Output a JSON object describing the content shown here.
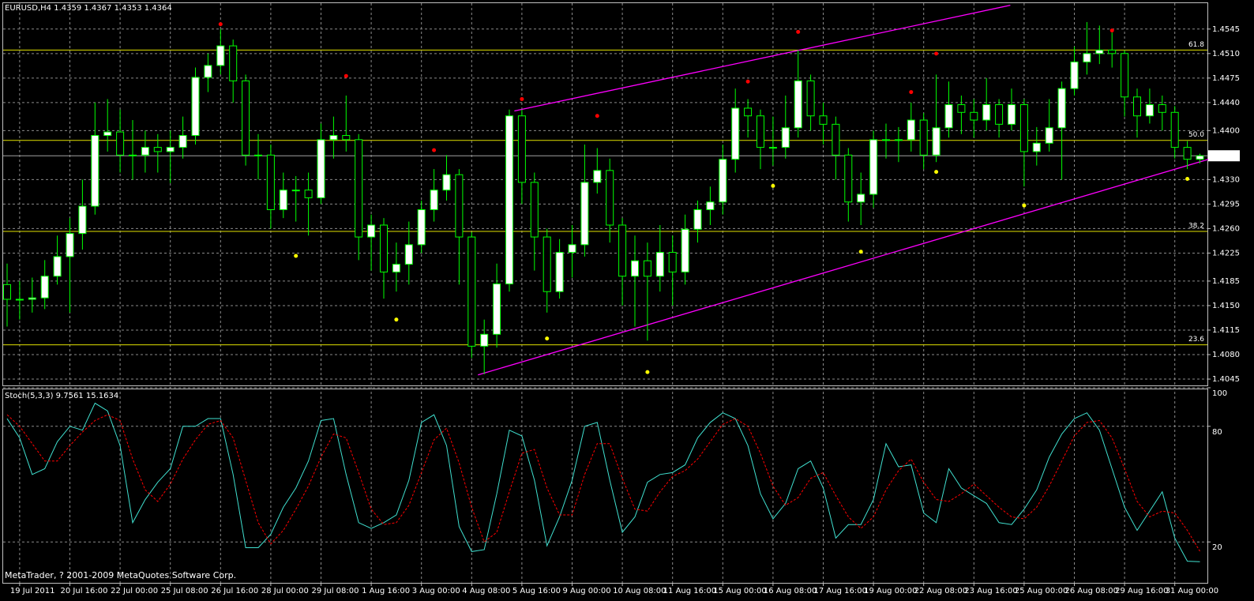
{
  "chart_data": [
    {
      "type": "candlestick",
      "title": "EURUSD,H4",
      "categories": [
        null,
        "19 Jul 2011",
        null,
        null,
        null,
        "20 Jul 16:00",
        null,
        null,
        null,
        "22 Jul 00:00",
        null,
        null,
        null,
        "25 Jul 08:00",
        null,
        null,
        null,
        "26 Jul 16:00",
        null,
        null,
        null,
        "28 Jul 00:00",
        null,
        null,
        null,
        "29 Jul 08:00",
        null,
        null,
        null,
        "1 Aug 16:00",
        null,
        null,
        null,
        "3 Aug 00:00",
        null,
        null,
        null,
        "4 Aug 08:00",
        null,
        null,
        null,
        "5 Aug 16:00",
        null,
        null,
        null,
        "9 Aug 00:00",
        null,
        null,
        null,
        "10 Aug 08:00",
        null,
        null,
        null,
        "11 Aug 16:00",
        null,
        null,
        null,
        "15 Aug 00:00",
        null,
        null,
        null,
        "16 Aug 08:00",
        null,
        null,
        null,
        "17 Aug 16:00",
        null,
        null,
        null,
        "19 Aug 00:00",
        null,
        null,
        null,
        "22 Aug 08:00",
        null,
        null,
        null,
        "23 Aug 16:00",
        null,
        null,
        null,
        "25 Aug 00:00",
        null,
        null,
        null,
        "26 Aug 08:00",
        null,
        null,
        null,
        "29 Aug 16:00",
        null,
        null,
        null,
        "31 Aug 00:00",
        null,
        null
      ],
      "open": [
        1.418,
        1.4159,
        1.4159,
        1.4161,
        1.4192,
        1.422,
        1.4253,
        1.4292,
        1.4393,
        1.4398,
        1.4365,
        1.4365,
        1.4376,
        1.437,
        1.4376,
        1.4393,
        1.4476,
        1.4493,
        1.4521,
        1.4471,
        1.4365,
        1.4365,
        1.4287,
        1.4315,
        1.4315,
        1.4304,
        1.4387,
        1.4393,
        1.4387,
        1.4248,
        1.4265,
        1.4198,
        1.4209,
        1.4237,
        1.4287,
        1.4315,
        1.4337,
        1.4248,
        1.4092,
        1.4109,
        1.4181,
        1.4421,
        1.4326,
        1.4248,
        1.417,
        1.4226,
        1.4237,
        1.4326,
        1.4343,
        1.4265,
        1.4192,
        1.4214,
        1.4192,
        1.4226,
        1.4198,
        1.4259,
        1.4287,
        1.4298,
        1.4359,
        1.4432,
        1.4421,
        1.4376,
        1.4376,
        1.4404,
        1.4471,
        1.4421,
        1.4409,
        1.4365,
        1.4298,
        1.4309,
        1.4387,
        1.4387,
        1.4387,
        1.4415,
        1.4365,
        1.4404,
        1.4437,
        1.4426,
        1.4415,
        1.4437,
        1.4409,
        1.4437,
        1.437,
        1.4382,
        1.4404,
        1.446,
        1.4498,
        1.451,
        1.4515,
        1.451,
        1.4448,
        1.4421,
        1.4437,
        1.4426,
        1.4376,
        1.4359
      ],
      "high": [
        1.421,
        1.4185,
        1.419,
        1.4215,
        1.425,
        1.4275,
        1.433,
        1.444,
        1.4445,
        1.443,
        1.4415,
        1.44,
        1.4395,
        1.44,
        1.442,
        1.449,
        1.451,
        1.4545,
        1.453,
        1.448,
        1.4395,
        1.438,
        1.434,
        1.4335,
        1.434,
        1.441,
        1.442,
        1.445,
        1.4395,
        1.428,
        1.4275,
        1.424,
        1.427,
        1.43,
        1.4345,
        1.4365,
        1.4345,
        1.4255,
        1.413,
        1.421,
        1.443,
        1.443,
        1.434,
        1.426,
        1.4245,
        1.4265,
        1.438,
        1.4375,
        1.436,
        1.4275,
        1.425,
        1.424,
        1.4265,
        1.425,
        1.428,
        1.43,
        1.432,
        1.438,
        1.446,
        1.4445,
        1.443,
        1.442,
        1.445,
        1.4515,
        1.448,
        1.444,
        1.442,
        1.4375,
        1.434,
        1.44,
        1.441,
        1.4405,
        1.444,
        1.4425,
        1.448,
        1.447,
        1.445,
        1.4445,
        1.4475,
        1.4445,
        1.446,
        1.4445,
        1.4405,
        1.4445,
        1.447,
        1.452,
        1.4555,
        1.455,
        1.454,
        1.4515,
        1.446,
        1.446,
        1.445,
        1.4435,
        1.4385,
        1.4367
      ],
      "low": [
        1.412,
        1.413,
        1.414,
        1.4145,
        1.418,
        1.414,
        1.423,
        1.428,
        1.437,
        1.434,
        1.433,
        1.434,
        1.434,
        1.4325,
        1.436,
        1.438,
        1.4455,
        1.448,
        1.444,
        1.435,
        1.433,
        1.426,
        1.4275,
        1.427,
        1.425,
        1.4295,
        1.436,
        1.437,
        1.4215,
        1.42,
        1.416,
        1.417,
        1.418,
        1.4225,
        1.427,
        1.43,
        1.418,
        1.4075,
        1.4052,
        1.409,
        1.417,
        1.4295,
        1.42,
        1.414,
        1.416,
        1.419,
        1.422,
        1.431,
        1.424,
        1.415,
        1.412,
        1.41,
        1.417,
        1.415,
        1.418,
        1.424,
        1.4265,
        1.428,
        1.434,
        1.439,
        1.4345,
        1.435,
        1.436,
        1.439,
        1.44,
        1.438,
        1.433,
        1.427,
        1.4265,
        1.429,
        1.436,
        1.4355,
        1.437,
        1.4345,
        1.4355,
        1.439,
        1.4395,
        1.439,
        1.44,
        1.439,
        1.44,
        1.432,
        1.435,
        1.437,
        1.433,
        1.445,
        1.448,
        1.4495,
        1.449,
        1.442,
        1.439,
        1.441,
        1.44,
        1.436,
        1.4345,
        1.4353
      ],
      "close": [
        1.4159,
        1.4159,
        1.4161,
        1.4192,
        1.422,
        1.4253,
        1.4292,
        1.4393,
        1.4398,
        1.4365,
        1.4365,
        1.4376,
        1.437,
        1.4376,
        1.4393,
        1.4476,
        1.4493,
        1.4521,
        1.4471,
        1.4365,
        1.4365,
        1.4287,
        1.4315,
        1.4315,
        1.4304,
        1.4387,
        1.4393,
        1.4387,
        1.4248,
        1.4265,
        1.4198,
        1.4209,
        1.4237,
        1.4287,
        1.4315,
        1.4337,
        1.4248,
        1.4092,
        1.4109,
        1.4181,
        1.4421,
        1.4326,
        1.4248,
        1.417,
        1.4226,
        1.4237,
        1.4326,
        1.4343,
        1.4265,
        1.4192,
        1.4214,
        1.4192,
        1.4226,
        1.4198,
        1.4259,
        1.4287,
        1.4298,
        1.4359,
        1.4432,
        1.4421,
        1.4376,
        1.4376,
        1.4404,
        1.4471,
        1.4421,
        1.4409,
        1.4365,
        1.4298,
        1.4309,
        1.4387,
        1.4387,
        1.4387,
        1.4415,
        1.4365,
        1.4404,
        1.4437,
        1.4426,
        1.4415,
        1.4437,
        1.4409,
        1.4437,
        1.437,
        1.4382,
        1.4404,
        1.446,
        1.4498,
        1.451,
        1.4515,
        1.451,
        1.4448,
        1.4421,
        1.4437,
        1.4426,
        1.4376,
        1.4359,
        1.4364
      ],
      "bull_color": "#ffffff",
      "bear_color": "#000000",
      "wick_color": "#00ff00",
      "ylim": [
        1.4036,
        1.4582
      ],
      "yticks": [
        1.4545,
        {
          "value": 1.451,
          "label": "1.4510"
        },
        1.4475,
        {
          "value": 1.444,
          "label": "1.4440"
        },
        {
          "value": 1.44,
          "label": "1.4400"
        },
        {
          "value": 1.433,
          "label": "1.4330"
        },
        1.4295,
        {
          "value": 1.426,
          "label": "1.4260"
        },
        1.4225,
        1.4185,
        {
          "value": 1.415,
          "label": "1.4150"
        },
        1.4115,
        {
          "value": 1.408,
          "label": "1.4080"
        },
        1.4045
      ],
      "grid": true,
      "fib_levels": [
        {
          "value": 1.4515,
          "label": "61.8"
        },
        {
          "value": 1.4386,
          "label": "50.0"
        },
        {
          "value": 1.4256,
          "label": "38.2"
        },
        {
          "value": 1.4094,
          "label": "23.6"
        }
      ],
      "fib_color": "#e0e000",
      "channel_lines": [
        {
          "x": [
            40.4,
            79.9
          ],
          "values": [
            1.4428,
            1.4579
          ],
          "color": "#ff00ff"
        },
        {
          "x": [
            37.5,
            95.7
          ],
          "values": [
            1.4051,
            1.4359
          ],
          "color": "#ff00ff"
        }
      ],
      "sar_points": [
        {
          "x": 17,
          "value": 1.4552,
          "color": "#ff0000"
        },
        {
          "x": 27,
          "value": 1.4478,
          "color": "#ff0000"
        },
        {
          "x": 34,
          "value": 1.4372,
          "color": "#ff0000"
        },
        {
          "x": 41,
          "value": 1.4445,
          "color": "#ff0000"
        },
        {
          "x": 47,
          "value": 1.4421,
          "color": "#ff0000"
        },
        {
          "x": 59,
          "value": 1.447,
          "color": "#ff0000"
        },
        {
          "x": 63,
          "value": 1.4541,
          "color": "#ff0000"
        },
        {
          "x": 72,
          "value": 1.4455,
          "color": "#ff0000"
        },
        {
          "x": 74,
          "value": 1.451,
          "color": "#ff0000"
        },
        {
          "x": 88,
          "value": 1.4543,
          "color": "#ff0000"
        },
        {
          "x": 23,
          "value": 1.4221,
          "color": "#ffff00"
        },
        {
          "x": 31,
          "value": 1.413,
          "color": "#ffff00"
        },
        {
          "x": 43,
          "value": 1.4103,
          "color": "#ffff00"
        },
        {
          "x": 51,
          "value": 1.4055,
          "color": "#ffff00"
        },
        {
          "x": 61,
          "value": 1.4321,
          "color": "#ffff00"
        },
        {
          "x": 68,
          "value": 1.4227,
          "color": "#ffff00"
        },
        {
          "x": 74,
          "value": 1.4341,
          "color": "#ffff00"
        },
        {
          "x": 81,
          "value": 1.4293,
          "color": "#ffff00"
        },
        {
          "x": 94,
          "value": 1.4331,
          "color": "#ffff00"
        }
      ]
    },
    {
      "type": "line",
      "title": "Stoch(5,3,3)",
      "series": [
        {
          "color": "#40e0d0",
          "values": [
            84,
            74,
            55,
            58,
            72,
            80,
            78,
            92,
            88,
            70,
            30,
            42,
            51,
            58,
            80,
            80,
            84,
            84,
            55,
            17,
            17,
            24,
            38,
            48,
            62,
            83,
            84,
            55,
            30,
            27,
            30,
            34,
            52,
            82,
            86,
            70,
            28,
            15,
            16,
            45,
            78,
            75,
            52,
            18,
            33,
            52,
            80,
            82,
            52,
            25,
            33,
            51,
            55,
            56,
            60,
            74,
            82,
            87,
            84,
            70,
            45,
            32,
            40,
            58,
            62,
            48,
            22,
            29,
            29,
            42,
            71,
            59,
            60,
            35,
            30,
            58,
            48,
            44,
            40,
            30,
            29,
            37,
            47,
            64,
            76,
            84,
            87,
            78,
            58,
            38,
            26,
            36,
            46,
            22,
            10,
            9.7561
          ]
        },
        {
          "color": "#ff0000",
          "dashed": true,
          "values": [
            86,
            80,
            71,
            62,
            62,
            70,
            77,
            83,
            86,
            83,
            63,
            47,
            41,
            50,
            63,
            73,
            81,
            83,
            74,
            52,
            30,
            19,
            26,
            37,
            49,
            64,
            76,
            74,
            56,
            37,
            29,
            30,
            39,
            56,
            73,
            79,
            61,
            38,
            20,
            25,
            46,
            66,
            68,
            48,
            34,
            34,
            55,
            71,
            71,
            53,
            37,
            36,
            46,
            54,
            57,
            63,
            72,
            81,
            84,
            80,
            66,
            49,
            39,
            43,
            53,
            56,
            44,
            33,
            27,
            33,
            47,
            57,
            63,
            51,
            42,
            41,
            45,
            50,
            44,
            38,
            33,
            32,
            38,
            49,
            62,
            75,
            82,
            83,
            74,
            58,
            41,
            33,
            36,
            35,
            26,
            15.1634
          ]
        }
      ],
      "ylim": [
        0,
        100
      ],
      "yticks": [
        20,
        80,
        100
      ],
      "grid": true
    }
  ],
  "copyright": "MetaTrader, ? 2001-2009 MetaQuotes Software Corp."
}
